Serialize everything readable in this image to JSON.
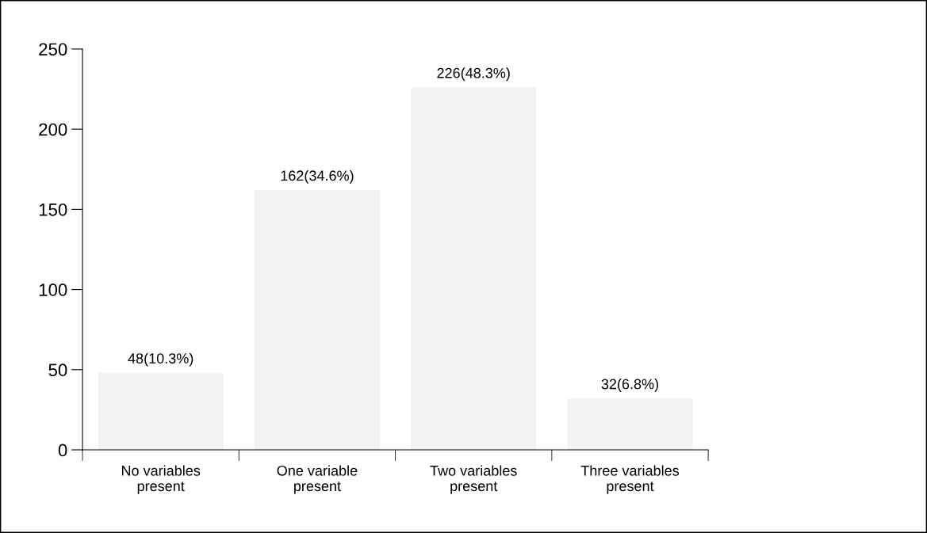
{
  "chart_data": {
    "type": "bar",
    "categories": [
      "No variables\npresent",
      "One variable\npresent",
      "Two variables\npresent",
      "Three variables\npresent"
    ],
    "values": [
      48,
      162,
      226,
      32
    ],
    "value_labels": [
      "48(10.3%)",
      "162(34.6%)",
      "226(48.3%)",
      "32(6.8%)"
    ],
    "color": "#f2f2f2",
    "ylim": [
      0,
      250
    ],
    "yticks": [
      0,
      50,
      100,
      150,
      200,
      250
    ],
    "grid": false,
    "legend": false
  }
}
